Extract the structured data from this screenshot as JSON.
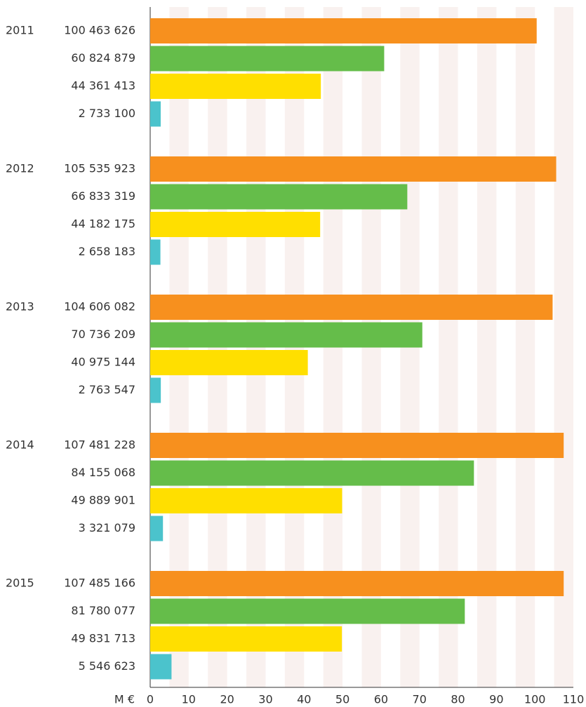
{
  "chart_data": {
    "type": "bar",
    "orientation": "horizontal",
    "x_label": "M €",
    "categories": [
      "2011",
      "2012",
      "2013",
      "2014",
      "2015"
    ],
    "series": [
      {
        "color": "#f7901e",
        "values": [
          100.463626,
          105.535923,
          104.606082,
          107.481228,
          107.485166
        ],
        "value_labels": [
          "100 463 626",
          "105 535 923",
          "104 606 082",
          "107 481 228",
          "107 485 166"
        ]
      },
      {
        "color": "#65bd4a",
        "values": [
          60.824879,
          66.833319,
          70.736209,
          84.155068,
          81.780077
        ],
        "value_labels": [
          "60 824 879",
          "66 833 319",
          "70 736 209",
          "84 155 068",
          "81 780 077"
        ]
      },
      {
        "color": "#ffdf00",
        "values": [
          44.361413,
          44.182175,
          40.975144,
          49.889901,
          49.831713
        ],
        "value_labels": [
          "44 361 413",
          "44 182 175",
          "40 975 144",
          "49 889 901",
          "49 831 713"
        ]
      },
      {
        "color": "#4bc3cc",
        "values": [
          2.7331,
          2.658183,
          2.763547,
          3.321079,
          5.546623
        ],
        "value_labels": [
          "2 733 100",
          "2 658 183",
          "2 763 547",
          "3 321 079",
          "5 546 623"
        ]
      }
    ],
    "xlim": [
      0,
      110
    ],
    "xticks": [
      0,
      10,
      20,
      30,
      40,
      50,
      60,
      70,
      80,
      90,
      100,
      110
    ]
  }
}
